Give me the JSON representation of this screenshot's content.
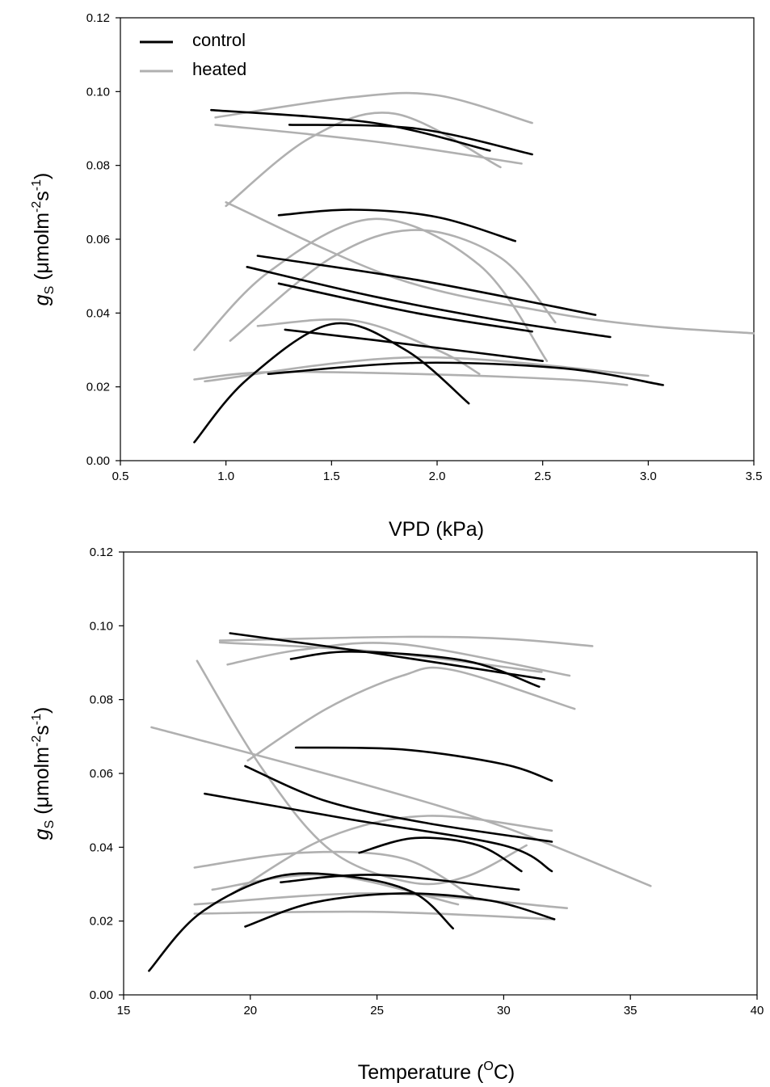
{
  "chart_data": [
    {
      "type": "line",
      "xlabel": "VPD (kPa)",
      "ylabel": {
        "symbol": "g",
        "sub": "S",
        "pre": "(μmolm",
        "sup1": "-2",
        "mid": "s",
        "sup2": "-1",
        "post": ")"
      },
      "xlim": [
        0.5,
        3.5
      ],
      "ylim": [
        0,
        0.12
      ],
      "x_ticks": [
        "0.5",
        "1.0",
        "1.5",
        "2.0",
        "2.5",
        "3.0",
        "3.5"
      ],
      "y_ticks": [
        "0.00",
        "0.02",
        "0.04",
        "0.06",
        "0.08",
        "0.10",
        "0.12"
      ],
      "legend": [
        {
          "name": "control",
          "color": "#000000"
        },
        {
          "name": "heated",
          "color": "#b0b0b0"
        }
      ],
      "series": [
        {
          "group": "control",
          "points": [
            [
              0.85,
              0.005
            ],
            [
              1.1,
              0.022
            ],
            [
              1.5,
              0.037
            ],
            [
              1.85,
              0.03
            ],
            [
              2.15,
              0.0155
            ]
          ]
        },
        {
          "group": "control",
          "points": [
            [
              1.28,
              0.0355
            ],
            [
              1.8,
              0.032
            ],
            [
              2.5,
              0.027
            ]
          ]
        },
        {
          "group": "control",
          "points": [
            [
              1.2,
              0.0235
            ],
            [
              1.9,
              0.0265
            ],
            [
              2.6,
              0.025
            ],
            [
              3.07,
              0.0205
            ]
          ]
        },
        {
          "group": "control",
          "points": [
            [
              1.25,
              0.048
            ],
            [
              1.9,
              0.04
            ],
            [
              2.45,
              0.035
            ]
          ]
        },
        {
          "group": "control",
          "points": [
            [
              1.1,
              0.0525
            ],
            [
              1.7,
              0.0445
            ],
            [
              2.3,
              0.038
            ],
            [
              2.82,
              0.0335
            ]
          ]
        },
        {
          "group": "control",
          "points": [
            [
              1.15,
              0.0555
            ],
            [
              1.9,
              0.049
            ],
            [
              2.75,
              0.0395
            ]
          ]
        },
        {
          "group": "control",
          "points": [
            [
              1.25,
              0.0665
            ],
            [
              1.6,
              0.068
            ],
            [
              2.0,
              0.066
            ],
            [
              2.37,
              0.0595
            ]
          ]
        },
        {
          "group": "control",
          "points": [
            [
              0.93,
              0.095
            ],
            [
              1.7,
              0.0915
            ],
            [
              2.25,
              0.084
            ]
          ]
        },
        {
          "group": "control",
          "points": [
            [
              1.3,
              0.091
            ],
            [
              1.9,
              0.09
            ],
            [
              2.45,
              0.083
            ]
          ]
        },
        {
          "group": "heated",
          "points": [
            [
              0.85,
              0.022
            ],
            [
              1.2,
              0.024
            ],
            [
              1.9,
              0.0235
            ],
            [
              2.6,
              0.022
            ],
            [
              2.9,
              0.0205
            ]
          ]
        },
        {
          "group": "heated",
          "points": [
            [
              0.9,
              0.0215
            ],
            [
              1.9,
              0.028
            ],
            [
              3.0,
              0.023
            ]
          ]
        },
        {
          "group": "heated",
          "points": [
            [
              1.15,
              0.0365
            ],
            [
              1.6,
              0.038
            ],
            [
              2.0,
              0.03
            ],
            [
              2.2,
              0.0235
            ]
          ]
        },
        {
          "group": "heated",
          "points": [
            [
              0.85,
              0.03
            ],
            [
              1.2,
              0.051
            ],
            [
              1.7,
              0.0655
            ],
            [
              2.2,
              0.053
            ],
            [
              2.52,
              0.027
            ]
          ]
        },
        {
          "group": "heated",
          "points": [
            [
              1.02,
              0.0325
            ],
            [
              1.5,
              0.055
            ],
            [
              1.9,
              0.0625
            ],
            [
              2.3,
              0.055
            ],
            [
              2.56,
              0.0375
            ]
          ]
        },
        {
          "group": "heated",
          "points": [
            [
              1.0,
              0.07
            ],
            [
              1.8,
              0.0495
            ],
            [
              2.5,
              0.0405
            ],
            [
              3.0,
              0.0365
            ],
            [
              3.5,
              0.0345
            ]
          ]
        },
        {
          "group": "heated",
          "points": [
            [
              1.0,
              0.069
            ],
            [
              1.4,
              0.0875
            ],
            [
              1.8,
              0.094
            ],
            [
              2.3,
              0.0795
            ]
          ]
        },
        {
          "group": "heated",
          "points": [
            [
              0.95,
              0.093
            ],
            [
              1.6,
              0.0985
            ],
            [
              2.0,
              0.099
            ],
            [
              2.45,
              0.0915
            ]
          ]
        },
        {
          "group": "heated",
          "points": [
            [
              0.95,
              0.091
            ],
            [
              1.7,
              0.0865
            ],
            [
              2.4,
              0.0805
            ]
          ]
        }
      ]
    },
    {
      "type": "line",
      "xlabel": {
        "pre": "Temperature (",
        "sup": "O",
        "post": "C)"
      },
      "ylabel": {
        "symbol": "g",
        "sub": "S",
        "pre": "(μmolm",
        "sup1": "-2",
        "mid": "s",
        "sup2": "-1",
        "post": ")"
      },
      "xlim": [
        15,
        40
      ],
      "ylim": [
        0,
        0.12
      ],
      "x_ticks": [
        "15",
        "20",
        "25",
        "30",
        "35",
        "40"
      ],
      "y_ticks": [
        "0.00",
        "0.02",
        "0.04",
        "0.06",
        "0.08",
        "0.10",
        "0.12"
      ],
      "series": [
        {
          "group": "control",
          "points": [
            [
              16.0,
              0.0065
            ],
            [
              18.0,
              0.022
            ],
            [
              21.0,
              0.032
            ],
            [
              24.0,
              0.032
            ],
            [
              26.5,
              0.0275
            ],
            [
              28.0,
              0.018
            ]
          ]
        },
        {
          "group": "control",
          "points": [
            [
              19.8,
              0.0185
            ],
            [
              22.5,
              0.025
            ],
            [
              26.0,
              0.0275
            ],
            [
              29.5,
              0.0255
            ],
            [
              32.0,
              0.0205
            ]
          ]
        },
        {
          "group": "control",
          "points": [
            [
              21.2,
              0.0305
            ],
            [
              25.0,
              0.0325
            ],
            [
              30.6,
              0.0285
            ]
          ]
        },
        {
          "group": "control",
          "points": [
            [
              24.3,
              0.0385
            ],
            [
              26.5,
              0.0425
            ],
            [
              29.0,
              0.0405
            ],
            [
              30.7,
              0.0335
            ]
          ]
        },
        {
          "group": "control",
          "points": [
            [
              18.2,
              0.0545
            ],
            [
              24.0,
              0.0475
            ],
            [
              30.0,
              0.0405
            ],
            [
              31.9,
              0.0335
            ]
          ]
        },
        {
          "group": "control",
          "points": [
            [
              19.8,
              0.062
            ],
            [
              23.0,
              0.0525
            ],
            [
              27.0,
              0.0465
            ],
            [
              31.9,
              0.0415
            ]
          ]
        },
        {
          "group": "control",
          "points": [
            [
              21.8,
              0.067
            ],
            [
              26.0,
              0.0665
            ],
            [
              30.0,
              0.0625
            ],
            [
              31.9,
              0.058
            ]
          ]
        },
        {
          "group": "control",
          "points": [
            [
              19.2,
              0.098
            ],
            [
              25.0,
              0.0925
            ],
            [
              31.6,
              0.0855
            ]
          ]
        },
        {
          "group": "control",
          "points": [
            [
              21.6,
              0.091
            ],
            [
              24.0,
              0.093
            ],
            [
              28.5,
              0.0905
            ],
            [
              31.4,
              0.0835
            ]
          ]
        },
        {
          "group": "heated",
          "points": [
            [
              17.8,
              0.022
            ],
            [
              25.0,
              0.0225
            ],
            [
              32.0,
              0.0205
            ]
          ]
        },
        {
          "group": "heated",
          "points": [
            [
              17.8,
              0.0245
            ],
            [
              25.0,
              0.0275
            ],
            [
              32.5,
              0.0235
            ]
          ]
        },
        {
          "group": "heated",
          "points": [
            [
              18.5,
              0.0285
            ],
            [
              23.0,
              0.0325
            ],
            [
              28.2,
              0.0245
            ]
          ]
        },
        {
          "group": "heated",
          "points": [
            [
              17.8,
              0.0345
            ],
            [
              22.0,
              0.0385
            ],
            [
              26.0,
              0.037
            ],
            [
              28.8,
              0.0265
            ]
          ]
        },
        {
          "group": "heated",
          "points": [
            [
              19.3,
              0.0275
            ],
            [
              23.0,
              0.0425
            ],
            [
              27.0,
              0.0485
            ],
            [
              31.9,
              0.0445
            ]
          ]
        },
        {
          "group": "heated",
          "points": [
            [
              17.9,
              0.0905
            ],
            [
              20.5,
              0.061
            ],
            [
              23.2,
              0.039
            ],
            [
              26.3,
              0.0305
            ],
            [
              28.5,
              0.032
            ],
            [
              30.9,
              0.0405
            ]
          ]
        },
        {
          "group": "heated",
          "points": [
            [
              16.1,
              0.0725
            ],
            [
              24.0,
              0.058
            ],
            [
              30.0,
              0.0455
            ],
            [
              35.8,
              0.0295
            ]
          ]
        },
        {
          "group": "heated",
          "points": [
            [
              19.9,
              0.0635
            ],
            [
              23.0,
              0.0775
            ],
            [
              26.0,
              0.0865
            ],
            [
              28.0,
              0.088
            ],
            [
              32.8,
              0.0775
            ]
          ]
        },
        {
          "group": "heated",
          "points": [
            [
              19.1,
              0.0895
            ],
            [
              22.0,
              0.0935
            ],
            [
              26.0,
              0.095
            ],
            [
              32.6,
              0.0865
            ]
          ]
        },
        {
          "group": "heated",
          "points": [
            [
              18.8,
              0.096
            ],
            [
              26.0,
              0.097
            ],
            [
              30.0,
              0.0965
            ],
            [
              33.5,
              0.0945
            ]
          ]
        },
        {
          "group": "heated",
          "points": [
            [
              18.8,
              0.0955
            ],
            [
              25.0,
              0.093
            ],
            [
              31.5,
              0.0875
            ]
          ]
        }
      ]
    }
  ]
}
